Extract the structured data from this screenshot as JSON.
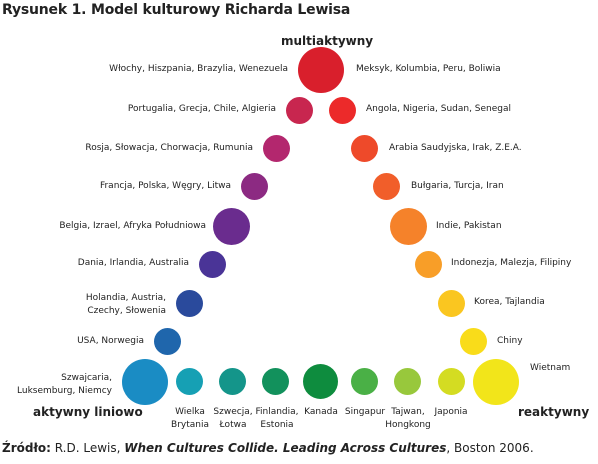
{
  "title": "Rysunek 1. Model kulturowy Richarda Lewisa",
  "poles": {
    "top": "multiaktywny",
    "left": "aktywny liniowo",
    "right": "reaktywny"
  },
  "labels": {
    "l1": "Włochy, Hiszpania, Brazylia, Wenezuela",
    "l2": "Portugalia, Grecja, Chile, Algieria",
    "l3": "Rosja, Słowacja, Chorwacja, Rumunia",
    "l4": "Francja, Polska, Węgry, Litwa",
    "l5": "Belgia, Izrael, Afryka Południowa",
    "l6": "Dania, Irlandia, Australia",
    "l7a": "Holandia, Austria,",
    "l7b": "Czechy, Słowenia",
    "l8": "USA, Norwegia",
    "l9a": "Szwajcaria,",
    "l9b": "Luksemburg, Niemcy",
    "r1": "Meksyk, Kolumbia, Peru, Boliwia",
    "r2": "Angola, Nigeria, Sudan, Senegal",
    "r3": "Arabia Saudyjska, Irak, Z.E.A.",
    "r4": "Bułgaria, Turcja, Iran",
    "r5": "Indie, Pakistan",
    "r6": "Indonezja, Malezja, Filipiny",
    "r7": "Korea, Tajlandia",
    "r8": "Chiny",
    "r9": "Wietnam",
    "b1a": "Wielka",
    "b1b": "Brytania",
    "b2a": "Szwecja,",
    "b2b": "Łotwa",
    "b3a": "Finlandia,",
    "b3b": "Estonia",
    "b4": "Kanada",
    "b5": "Singapur",
    "b6a": "Tajwan,",
    "b6b": "Hongkong",
    "b7": "Japonia"
  },
  "source": {
    "lead": "Źródło:",
    "author": " R.D. Lewis, ",
    "book": "When Cultures Collide. Leading Across Cultures",
    "rest": ", Boston 2006."
  },
  "colors": {
    "top": "#d91f2c",
    "l1": "#c8264f",
    "l2": "#b3276e",
    "l3": "#8c2a82",
    "l4": "#6a2c8e",
    "l5": "#4a3497",
    "l6": "#2a4a9c",
    "l7": "#1f66ac",
    "l8": "#1a8cc4",
    "b1": "#16a0b4",
    "b2": "#14958a",
    "b3": "#12915c",
    "b4": "#0e8c3e",
    "b5": "#4ab046",
    "b6": "#98c83c",
    "b7": "#d4dc22",
    "b8": "#f2e51a",
    "r1": "#ec2a2a",
    "r2": "#ee4a2a",
    "r3": "#f15e2a",
    "r4": "#f5822a",
    "r5": "#f89e28",
    "r6": "#fac620",
    "r7": "#f9dc1a"
  }
}
